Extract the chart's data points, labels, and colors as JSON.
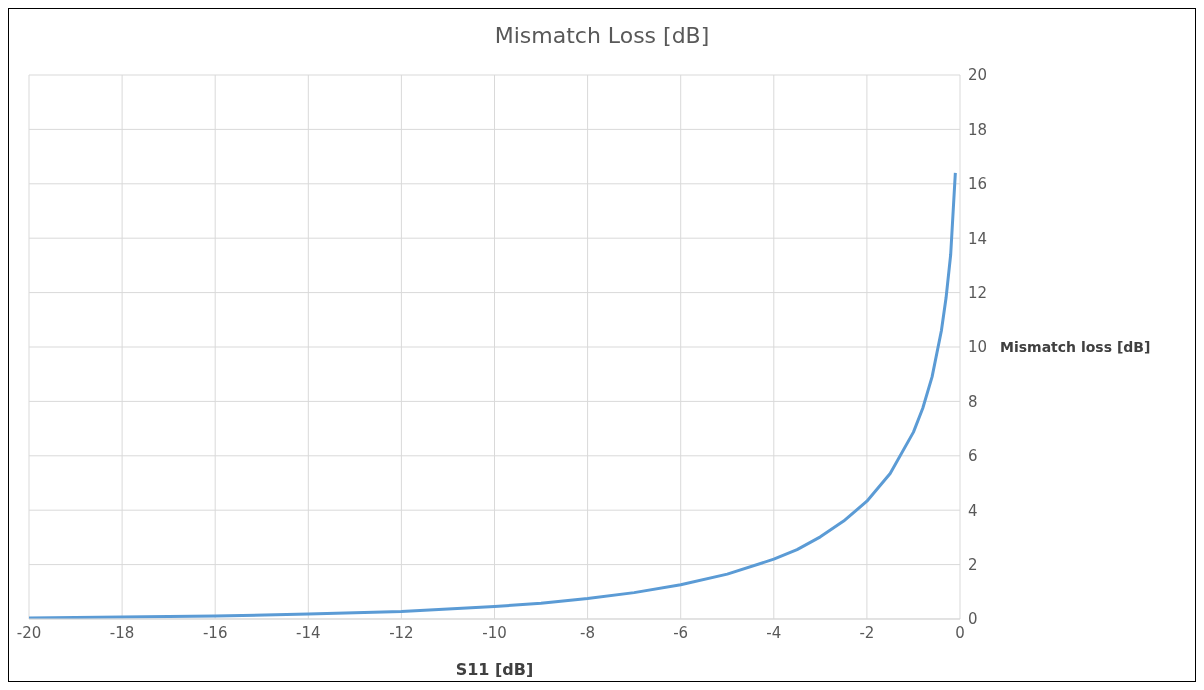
{
  "chart_data": {
    "type": "line",
    "title": "Mismatch Loss [dB]",
    "xlabel": "S11 [dB]",
    "ylabel": "Mismatch loss [dB]",
    "x": [
      -20,
      -18,
      -16,
      -14,
      -12,
      -10,
      -9,
      -8,
      -7,
      -6,
      -5,
      -4,
      -3.5,
      -3,
      -2.5,
      -2,
      -1.5,
      -1,
      -0.8,
      -0.6,
      -0.4,
      -0.3,
      -0.2,
      -0.1
    ],
    "series": [
      {
        "color": "#5b9bd5",
        "values": [
          0.04,
          0.07,
          0.11,
          0.18,
          0.28,
          0.46,
          0.58,
          0.75,
          0.97,
          1.26,
          1.65,
          2.2,
          2.55,
          3.02,
          3.6,
          4.33,
          5.35,
          6.87,
          7.75,
          8.9,
          10.6,
          11.8,
          13.4,
          16.4
        ]
      }
    ],
    "xlim": [
      -20,
      0
    ],
    "xticks": [
      -20,
      -18,
      -16,
      -14,
      -12,
      -10,
      -8,
      -6,
      -4,
      -2,
      0
    ],
    "ylim": [
      0,
      20
    ],
    "yticks": [
      0,
      2,
      4,
      6,
      8,
      10,
      12,
      14,
      16,
      18,
      20
    ],
    "grid": true
  }
}
